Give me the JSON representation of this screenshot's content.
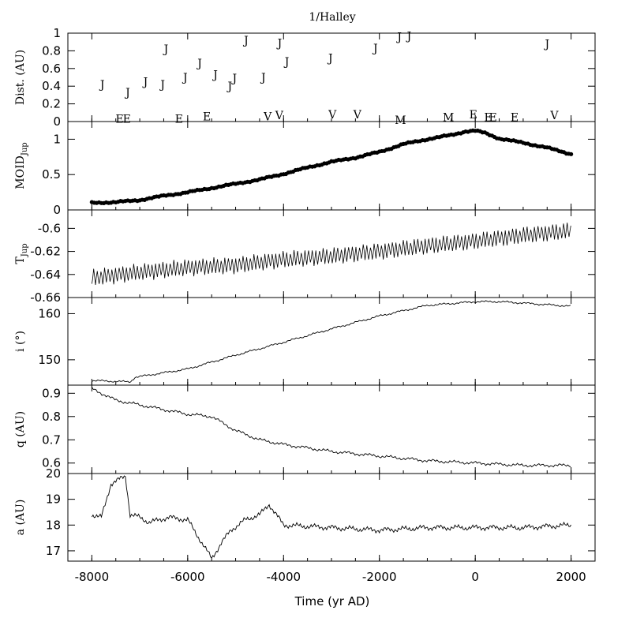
{
  "chart_data": {
    "type": "multi-panel",
    "title": "1/Halley",
    "xlabel": "Time (yr AD)",
    "xlim": [
      -8500,
      2500
    ],
    "xticks": [
      -8000,
      -6000,
      -4000,
      -2000,
      0,
      2000
    ],
    "xtick_labels": [
      "-8000",
      "-6000",
      "-4000",
      "-2000",
      "0",
      "2000"
    ],
    "panels": [
      {
        "id": "dist",
        "type": "scatter-letters",
        "ylabel": "Dist. (AU)",
        "ylim": [
          0,
          1.0
        ],
        "yticks": [
          0,
          0.2,
          0.4,
          0.6,
          0.8,
          1
        ],
        "ytick_labels": [
          "0",
          "0.2",
          "0.4",
          "0.6",
          "0.8",
          "1"
        ],
        "points": [
          {
            "label": "J",
            "x": -7780,
            "y": 0.42
          },
          {
            "label": "J",
            "x": -7250,
            "y": 0.33
          },
          {
            "label": "J",
            "x": -6880,
            "y": 0.45
          },
          {
            "label": "J",
            "x": -6520,
            "y": 0.42
          },
          {
            "label": "J",
            "x": -6450,
            "y": 0.82
          },
          {
            "label": "J",
            "x": -6050,
            "y": 0.5
          },
          {
            "label": "J",
            "x": -5750,
            "y": 0.66
          },
          {
            "label": "J",
            "x": -5420,
            "y": 0.53
          },
          {
            "label": "J",
            "x": -5120,
            "y": 0.4
          },
          {
            "label": "J",
            "x": -5020,
            "y": 0.49
          },
          {
            "label": "J",
            "x": -4780,
            "y": 0.92
          },
          {
            "label": "J",
            "x": -4420,
            "y": 0.5
          },
          {
            "label": "J",
            "x": -4080,
            "y": 0.89
          },
          {
            "label": "J",
            "x": -3930,
            "y": 0.68
          },
          {
            "label": "J",
            "x": -3020,
            "y": 0.72
          },
          {
            "label": "J",
            "x": -2080,
            "y": 0.83
          },
          {
            "label": "J",
            "x": -1580,
            "y": 0.96
          },
          {
            "label": "J",
            "x": -1380,
            "y": 0.97
          },
          {
            "label": "J",
            "x": 1500,
            "y": 0.88
          },
          {
            "label": "E",
            "x": -7420,
            "y": 0.03
          },
          {
            "label": "E",
            "x": -7270,
            "y": 0.03
          },
          {
            "label": "E",
            "x": -6180,
            "y": 0.03
          },
          {
            "label": "E",
            "x": -5600,
            "y": 0.06
          },
          {
            "label": "V",
            "x": -4330,
            "y": 0.06
          },
          {
            "label": "V",
            "x": -4090,
            "y": 0.07
          },
          {
            "label": "V",
            "x": -2980,
            "y": 0.08
          },
          {
            "label": "V",
            "x": -2460,
            "y": 0.08
          },
          {
            "label": "M",
            "x": -1560,
            "y": 0.02
          },
          {
            "label": "M",
            "x": -560,
            "y": 0.05
          },
          {
            "label": "E",
            "x": -40,
            "y": 0.08
          },
          {
            "label": "E",
            "x": 270,
            "y": 0.05
          },
          {
            "label": "E",
            "x": 370,
            "y": 0.05
          },
          {
            "label": "E",
            "x": 820,
            "y": 0.05
          },
          {
            "label": "V",
            "x": 1650,
            "y": 0.07
          }
        ]
      },
      {
        "id": "moid",
        "type": "scatter",
        "ylabel": "MOID",
        "ylabel_sub": "Jup",
        "ylim": [
          0,
          1.25
        ],
        "yticks": [
          0,
          0.5,
          1
        ],
        "ytick_labels": [
          "0",
          "0.5",
          "1"
        ],
        "x": [
          -8000,
          -7500,
          -7000,
          -6500,
          -6000,
          -5500,
          -5000,
          -4500,
          -4000,
          -3500,
          -3000,
          -2500,
          -2000,
          -1500,
          -1000,
          -500,
          -200,
          0,
          200,
          500,
          1000,
          1500,
          2000
        ],
        "y": [
          0.1,
          0.11,
          0.14,
          0.2,
          0.25,
          0.31,
          0.37,
          0.43,
          0.51,
          0.6,
          0.68,
          0.74,
          0.82,
          0.93,
          1.0,
          1.06,
          1.11,
          1.12,
          1.09,
          1.01,
          0.95,
          0.88,
          0.79
        ]
      },
      {
        "id": "tjup",
        "type": "line",
        "ylabel": "T",
        "ylabel_sub": "Jup",
        "ylim": [
          -0.66,
          -0.584
        ],
        "yticks": [
          -0.66,
          -0.64,
          -0.62,
          -0.6
        ],
        "ytick_labels": [
          "-0.66",
          "-0.64",
          "-0.62",
          "-0.6"
        ],
        "x": [
          -8000,
          -7000,
          -6000,
          -5000,
          -4000,
          -3000,
          -2000,
          -1000,
          0,
          1000,
          2000
        ],
        "y_mean": [
          -0.643,
          -0.638,
          -0.634,
          -0.632,
          -0.627,
          -0.624,
          -0.62,
          -0.615,
          -0.611,
          -0.606,
          -0.602
        ],
        "oscillation_amplitude": 0.006,
        "oscillation_period_yr": 76
      },
      {
        "id": "incl",
        "type": "line",
        "ylabel": "i (°)",
        "ylim": [
          144.5,
          163.5
        ],
        "yticks": [
          150,
          160
        ],
        "ytick_labels": [
          "150",
          "160"
        ],
        "x": [
          -8000,
          -7200,
          -7100,
          -6000,
          -5000,
          -4000,
          -3000,
          -2000,
          -1000,
          0,
          500,
          1000,
          2000
        ],
        "y": [
          145.5,
          145.2,
          146.2,
          148.0,
          151.0,
          153.8,
          156.7,
          159.5,
          161.8,
          162.6,
          162.6,
          162.3,
          161.6
        ]
      },
      {
        "id": "q",
        "type": "line",
        "ylabel": "q (AU)",
        "ylim": [
          0.555,
          0.935
        ],
        "yticks": [
          0.6,
          0.7,
          0.8,
          0.9
        ],
        "ytick_labels": [
          "0.6",
          "0.7",
          "0.8",
          "0.9"
        ],
        "x": [
          -8000,
          -7500,
          -7000,
          -6500,
          -6000,
          -5500,
          -5000,
          -4500,
          -4000,
          -3000,
          -2000,
          -1000,
          0,
          1000,
          2000
        ],
        "y": [
          0.92,
          0.87,
          0.85,
          0.83,
          0.81,
          0.8,
          0.74,
          0.7,
          0.68,
          0.65,
          0.63,
          0.61,
          0.6,
          0.59,
          0.59
        ]
      },
      {
        "id": "a",
        "type": "line",
        "ylabel": "a (AU)",
        "ylim": [
          16.6,
          20.0
        ],
        "yticks": [
          17,
          18,
          19,
          20
        ],
        "ytick_labels": [
          "17",
          "18",
          "19",
          "20"
        ],
        "x": [
          -8000,
          -7800,
          -7600,
          -7500,
          -7300,
          -7200,
          -7000,
          -6800,
          -6400,
          -6000,
          -5800,
          -5600,
          -5500,
          -5300,
          -5100,
          -4800,
          -4500,
          -4300,
          -4000,
          -3000,
          -2000,
          -1000,
          0,
          1000,
          2000
        ],
        "y": [
          18.4,
          18.3,
          19.6,
          19.7,
          19.9,
          18.4,
          18.3,
          18.1,
          18.3,
          18.2,
          17.6,
          17.0,
          16.7,
          17.3,
          17.8,
          18.2,
          18.4,
          18.8,
          18.0,
          17.9,
          17.8,
          17.9,
          17.9,
          17.9,
          18.0
        ]
      }
    ]
  }
}
